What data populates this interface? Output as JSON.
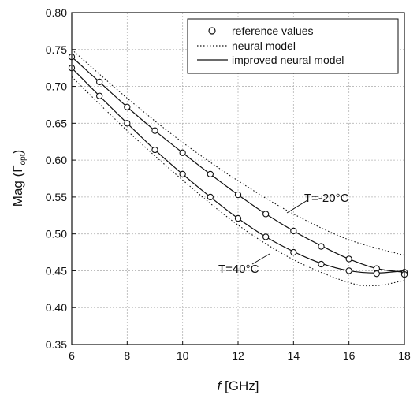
{
  "chart_data": {
    "type": "line",
    "title": "",
    "xlabel": {
      "italic": "f",
      "rest": " [GHz]"
    },
    "ylabel": {
      "main": "Mag (Γ",
      "sub": "opt",
      "close": ")"
    },
    "xlim": [
      6,
      18
    ],
    "ylim": [
      0.35,
      0.8
    ],
    "x_ticks": [
      6,
      8,
      10,
      12,
      14,
      16,
      18
    ],
    "y_ticks": [
      "0.35",
      "0.40",
      "0.45",
      "0.50",
      "0.55",
      "0.60",
      "0.65",
      "0.70",
      "0.75",
      "0.80"
    ],
    "grid": true,
    "legend_position": "top-right",
    "legend": [
      {
        "label": "reference values",
        "style": "circle"
      },
      {
        "label": "neural model",
        "style": "dotted"
      },
      {
        "label": "improved neural model",
        "style": "solid"
      }
    ],
    "annotations": {
      "upper": "T=-20°C",
      "lower": "T=40°C"
    },
    "series": [
      {
        "temperature": "T=-20°C",
        "reference_values": {
          "x": [
            6,
            7,
            8,
            9,
            10,
            11,
            12,
            13,
            14,
            15,
            16,
            17,
            18
          ],
          "y": [
            0.74,
            0.706,
            0.672,
            0.64,
            0.61,
            0.581,
            0.553,
            0.527,
            0.504,
            0.483,
            0.466,
            0.453,
            0.448
          ]
        },
        "neural_model": {
          "x": [
            6,
            8,
            10,
            12,
            14,
            16,
            18
          ],
          "y": [
            0.75,
            0.684,
            0.624,
            0.572,
            0.527,
            0.492,
            0.471
          ]
        },
        "improved_neural_model": {
          "x": [
            6,
            7,
            8,
            9,
            10,
            11,
            12,
            13,
            14,
            15,
            16,
            17,
            18
          ],
          "y": [
            0.74,
            0.706,
            0.672,
            0.64,
            0.61,
            0.581,
            0.553,
            0.527,
            0.504,
            0.484,
            0.466,
            0.453,
            0.448
          ]
        }
      },
      {
        "temperature": "T=40°C",
        "reference_values": {
          "x": [
            6,
            7,
            8,
            9,
            10,
            11,
            12,
            13,
            14,
            15,
            16,
            17,
            18
          ],
          "y": [
            0.725,
            0.687,
            0.65,
            0.614,
            0.581,
            0.55,
            0.521,
            0.496,
            0.475,
            0.459,
            0.45,
            0.446,
            0.445
          ]
        },
        "neural_model": {
          "x": [
            6,
            8,
            10,
            12,
            14,
            16,
            17,
            18
          ],
          "y": [
            0.713,
            0.64,
            0.573,
            0.512,
            0.465,
            0.434,
            0.43,
            0.437
          ]
        },
        "improved_neural_model": {
          "x": [
            6,
            7,
            8,
            9,
            10,
            11,
            12,
            13,
            14,
            15,
            16,
            17,
            18
          ],
          "y": [
            0.725,
            0.687,
            0.65,
            0.614,
            0.581,
            0.55,
            0.521,
            0.496,
            0.476,
            0.46,
            0.45,
            0.447,
            0.45
          ]
        }
      }
    ]
  }
}
